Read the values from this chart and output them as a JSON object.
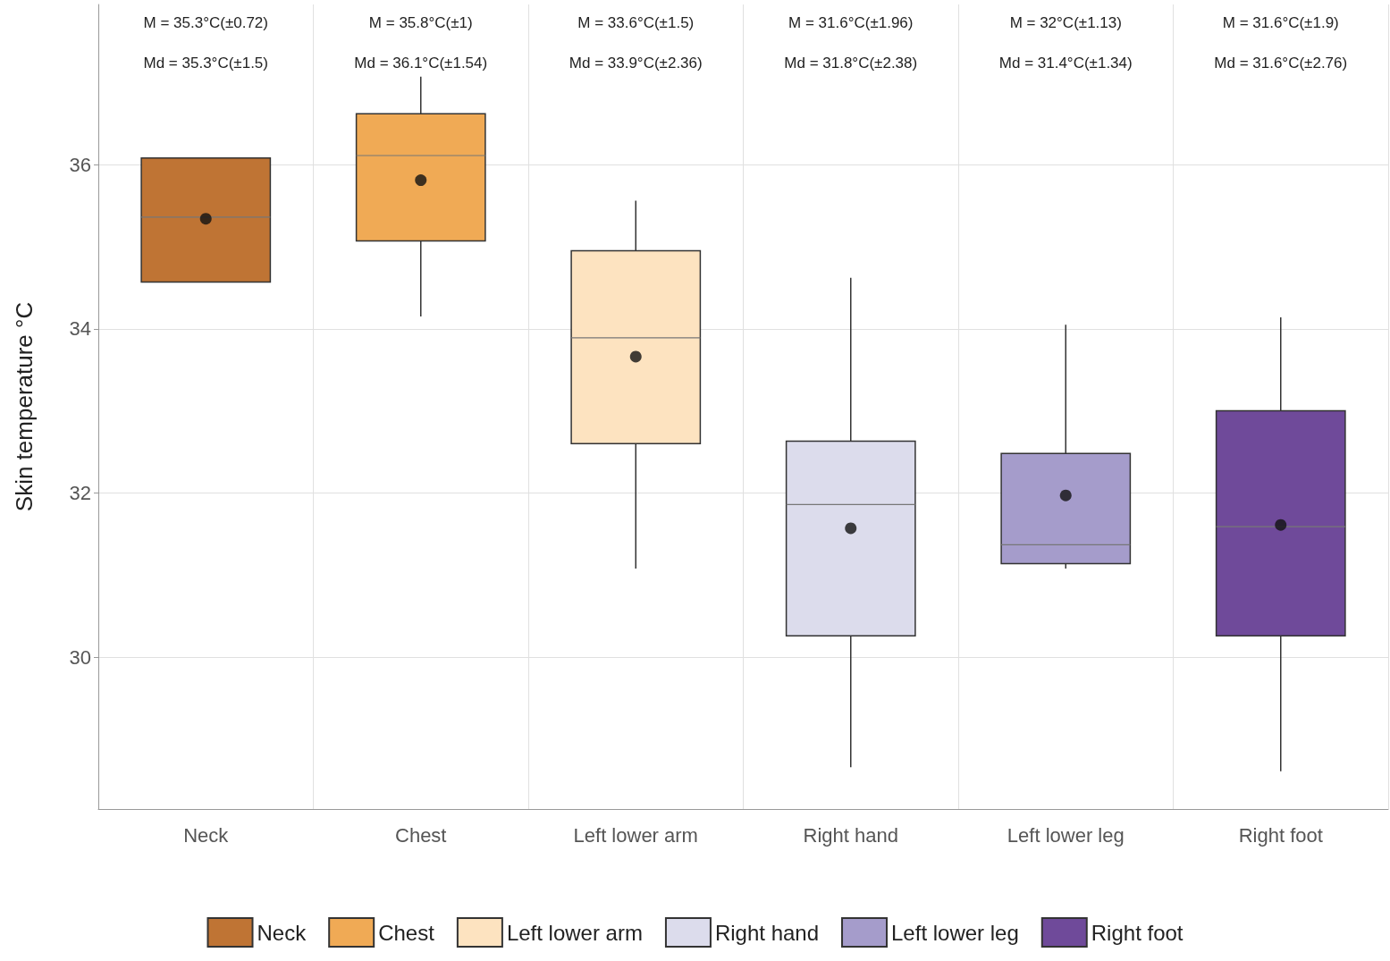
{
  "chart_data": {
    "type": "box",
    "ylabel": "Skin temperature °C",
    "categories": [
      "Neck",
      "Chest",
      "Left lower arm",
      "Right hand",
      "Left lower leg",
      "Right foot"
    ],
    "series": [
      {
        "name": "Neck",
        "color": "#bf7434",
        "boxes": [
          {
            "low": 34.57,
            "q1": 34.57,
            "median": 35.36,
            "q3": 36.08,
            "high": 36.08,
            "mean": 35.34
          },
          null,
          null,
          null,
          null,
          null
        ]
      },
      {
        "name": "Chest",
        "color": "#f0aa55",
        "boxes": [
          null,
          {
            "low": 34.15,
            "q1": 35.07,
            "median": 36.11,
            "q3": 36.62,
            "high": 37.07,
            "mean": 35.81
          },
          null,
          null,
          null,
          null
        ]
      },
      {
        "name": "Left lower arm",
        "color": "#fde3c0",
        "boxes": [
          null,
          null,
          {
            "low": 31.08,
            "q1": 32.6,
            "median": 33.89,
            "q3": 34.95,
            "high": 35.56,
            "mean": 33.66
          },
          null,
          null,
          null
        ]
      },
      {
        "name": "Right hand",
        "color": "#dcdcec",
        "boxes": [
          null,
          null,
          null,
          {
            "low": 28.66,
            "q1": 30.26,
            "median": 31.86,
            "q3": 32.63,
            "high": 34.62,
            "mean": 31.57
          },
          null,
          null
        ]
      },
      {
        "name": "Left lower leg",
        "color": "#a59ccb",
        "boxes": [
          null,
          null,
          null,
          null,
          {
            "low": 31.08,
            "q1": 31.14,
            "median": 31.37,
            "q3": 32.48,
            "high": 34.05,
            "mean": 31.97
          },
          null
        ]
      },
      {
        "name": "Right foot",
        "color": "#6f4a9a",
        "boxes": [
          null,
          null,
          null,
          null,
          null,
          {
            "low": 28.61,
            "q1": 30.26,
            "median": 31.59,
            "q3": 33.0,
            "high": 34.14,
            "mean": 31.61
          }
        ]
      }
    ],
    "ylim": [
      28.15,
      37.95
    ],
    "yticks": [
      30,
      32,
      34,
      36
    ],
    "grid": true,
    "legend": "bottom",
    "marker": "circle",
    "annotations": [
      "M = 35.3°C(±0.72)",
      "Md = 35.3°C(±1.5)",
      "M = 35.8°C(±1)",
      "Md = 36.1°C(±1.54)",
      "M = 33.6°C(±1.5)",
      "Md = 33.9°C(±2.36)",
      "M = 31.6°C(±1.96)",
      "Md = 31.8°C(±2.38)",
      "M = 32°C(±1.13)",
      "Md = 31.4°C(±1.34)",
      "M = 31.6°C(±1.9)",
      "Md = 31.6°C(±2.76)"
    ]
  }
}
